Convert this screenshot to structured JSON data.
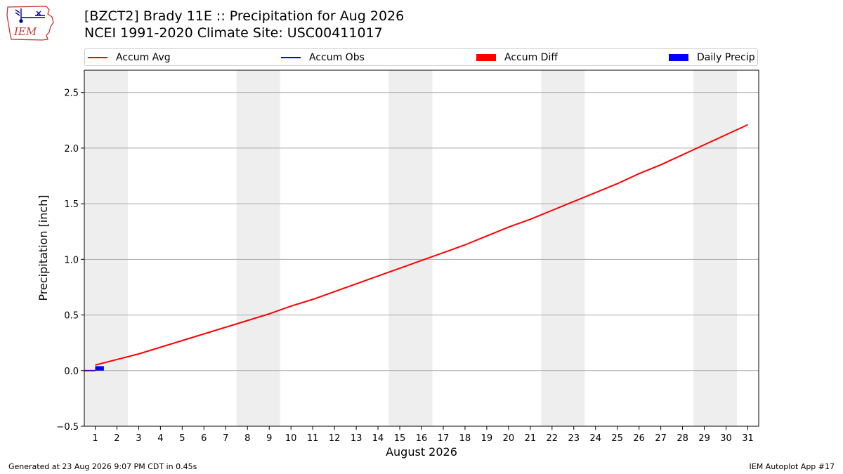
{
  "logo": {
    "text": "IEM"
  },
  "header": {
    "title_line1": "[BZCT2] Brady 11E :: Precipitation for Aug 2026",
    "title_line2": "NCEI 1991-2020 Climate Site: USC00411017"
  },
  "legend": {
    "accum_avg": "Accum Avg",
    "accum_obs": "Accum Obs",
    "accum_diff": "Accum Diff",
    "daily_precip": "Daily Precip"
  },
  "colors": {
    "accum_avg": "#ff0000",
    "accum_obs": "#0000ff",
    "accum_diff": "#ff0000",
    "daily_precip": "#0000ff",
    "weekend_shade": "#eeeeee",
    "grid": "#aaaaaa"
  },
  "footer": {
    "left": "Generated at 23 Aug 2026 9:07 PM CDT in 0.45s",
    "right": "IEM Autoplot App #17"
  },
  "chart_data": {
    "type": "line",
    "xlabel": "August 2026",
    "ylabel": "Precipitation [inch]",
    "x": [
      1,
      2,
      3,
      4,
      5,
      6,
      7,
      8,
      9,
      10,
      11,
      12,
      13,
      14,
      15,
      16,
      17,
      18,
      19,
      20,
      21,
      22,
      23,
      24,
      25,
      26,
      27,
      28,
      29,
      30,
      31
    ],
    "xlim": [
      0.5,
      31.5
    ],
    "ylim": [
      -0.5,
      2.7
    ],
    "yticks": [
      -0.5,
      0.0,
      0.5,
      1.0,
      1.5,
      2.0,
      2.5
    ],
    "ytick_labels": [
      "−0.5",
      "0.0",
      "0.5",
      "1.0",
      "1.5",
      "2.0",
      "2.5"
    ],
    "grid": "horizontal",
    "weekend_spans": [
      [
        0.5,
        2.5
      ],
      [
        7.5,
        9.5
      ],
      [
        14.5,
        16.5
      ],
      [
        21.5,
        23.5
      ],
      [
        28.5,
        30.5
      ]
    ],
    "series": [
      {
        "name": "Accum Avg",
        "values": [
          0.05,
          0.1,
          0.15,
          0.21,
          0.27,
          0.33,
          0.39,
          0.45,
          0.51,
          0.58,
          0.64,
          0.71,
          0.78,
          0.85,
          0.92,
          0.99,
          1.06,
          1.13,
          1.21,
          1.29,
          1.36,
          1.44,
          1.52,
          1.6,
          1.68,
          1.77,
          1.85,
          1.94,
          2.03,
          2.12,
          2.21
        ]
      },
      {
        "name": "Accum Obs",
        "x": [
          0.5,
          1
        ],
        "values": [
          0.0,
          0.0
        ]
      },
      {
        "name": "Accum Diff",
        "x": [
          0.5,
          1
        ],
        "values": [
          0.0,
          0.0
        ]
      },
      {
        "name": "Daily Precip",
        "x": [
          1
        ],
        "values": [
          0.04
        ]
      }
    ]
  }
}
